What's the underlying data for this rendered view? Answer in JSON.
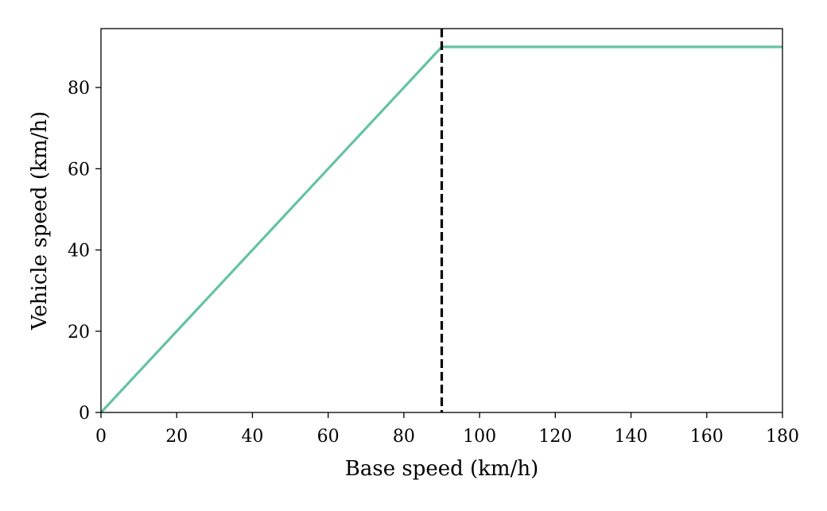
{
  "chart_data": {
    "type": "line",
    "title": "",
    "xlabel": "Base speed (km/h)",
    "ylabel": "Vehicle speed (km/h)",
    "xlim": [
      0,
      180
    ],
    "ylim": [
      0,
      94.5
    ],
    "grid": false,
    "x_ticks": [
      0,
      20,
      40,
      60,
      80,
      100,
      120,
      140,
      160,
      180
    ],
    "y_ticks": [
      0,
      20,
      40,
      60,
      80
    ],
    "series": [
      {
        "x": [
          0,
          90,
          180
        ],
        "y": [
          0,
          90,
          90
        ],
        "color": "#66c2a5",
        "style": "solid"
      }
    ],
    "vertical_line": {
      "x": 90,
      "color": "#000000",
      "style": "dashed"
    }
  }
}
